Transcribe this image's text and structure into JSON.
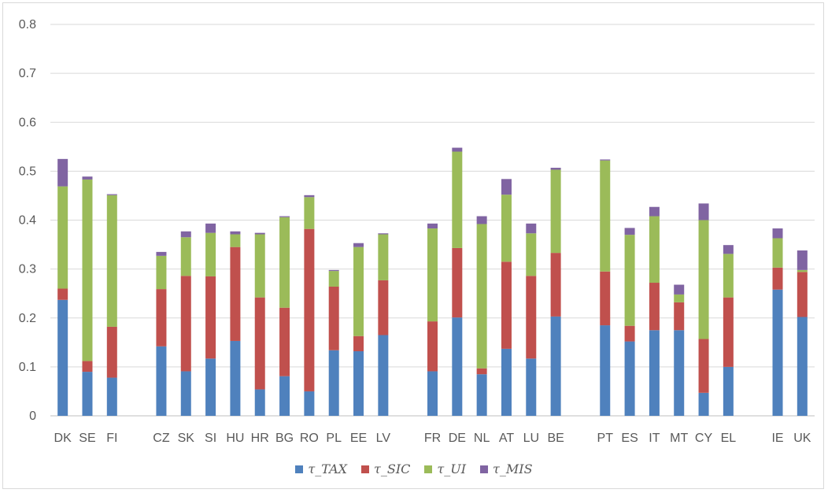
{
  "chart_data": {
    "type": "bar",
    "stacked": true,
    "title": "",
    "xlabel": "",
    "ylabel": "",
    "ylim": [
      0,
      0.8
    ],
    "yticks": [
      "0",
      "0.1",
      "0.2",
      "0.3",
      "0.4",
      "0.5",
      "0.6",
      "0.7",
      "0.8"
    ],
    "grid": true,
    "legend_position": "bottom",
    "groups": [
      [
        "DK",
        "SE",
        "FI"
      ],
      [
        "CZ",
        "SK",
        "SI",
        "HU",
        "HR",
        "BG",
        "RO",
        "PL",
        "EE",
        "LV"
      ],
      [
        "FR",
        "DE",
        "NL",
        "AT",
        "LU",
        "BE"
      ],
      [
        "PT",
        "ES",
        "IT",
        "MT",
        "CY",
        "EL"
      ],
      [
        "IE",
        "UK"
      ]
    ],
    "categories": [
      "DK",
      "SE",
      "FI",
      "CZ",
      "SK",
      "SI",
      "HU",
      "HR",
      "BG",
      "RO",
      "PL",
      "EE",
      "LV",
      "FR",
      "DE",
      "NL",
      "AT",
      "LU",
      "BE",
      "PT",
      "ES",
      "IT",
      "MT",
      "CY",
      "EL",
      "IE",
      "UK"
    ],
    "series": [
      {
        "name": "τ_TAX",
        "color": "#4f81bd",
        "values": [
          0.237,
          0.09,
          0.078,
          0.142,
          0.091,
          0.117,
          0.153,
          0.054,
          0.081,
          0.05,
          0.134,
          0.132,
          0.165,
          0.091,
          0.201,
          0.085,
          0.137,
          0.117,
          0.203,
          0.185,
          0.152,
          0.175,
          0.175,
          0.047,
          0.1,
          0.258,
          0.202
        ]
      },
      {
        "name": "τ_SIC",
        "color": "#c0504d",
        "values": [
          0.023,
          0.022,
          0.104,
          0.117,
          0.195,
          0.168,
          0.192,
          0.188,
          0.14,
          0.332,
          0.13,
          0.031,
          0.112,
          0.102,
          0.142,
          0.012,
          0.178,
          0.169,
          0.13,
          0.11,
          0.032,
          0.097,
          0.057,
          0.11,
          0.142,
          0.045,
          0.092
        ]
      },
      {
        "name": "τ_UI",
        "color": "#9bbb59",
        "values": [
          0.209,
          0.371,
          0.269,
          0.068,
          0.079,
          0.089,
          0.026,
          0.129,
          0.185,
          0.065,
          0.032,
          0.182,
          0.094,
          0.19,
          0.197,
          0.295,
          0.137,
          0.087,
          0.17,
          0.227,
          0.186,
          0.136,
          0.016,
          0.243,
          0.089,
          0.06,
          0.004
        ]
      },
      {
        "name": "τ_MIS",
        "color": "#8064a2",
        "values": [
          0.056,
          0.006,
          0.002,
          0.008,
          0.012,
          0.019,
          0.006,
          0.003,
          0.002,
          0.004,
          0.002,
          0.008,
          0.002,
          0.01,
          0.008,
          0.016,
          0.032,
          0.02,
          0.004,
          0.002,
          0.014,
          0.019,
          0.02,
          0.034,
          0.018,
          0.02,
          0.04
        ]
      }
    ]
  }
}
